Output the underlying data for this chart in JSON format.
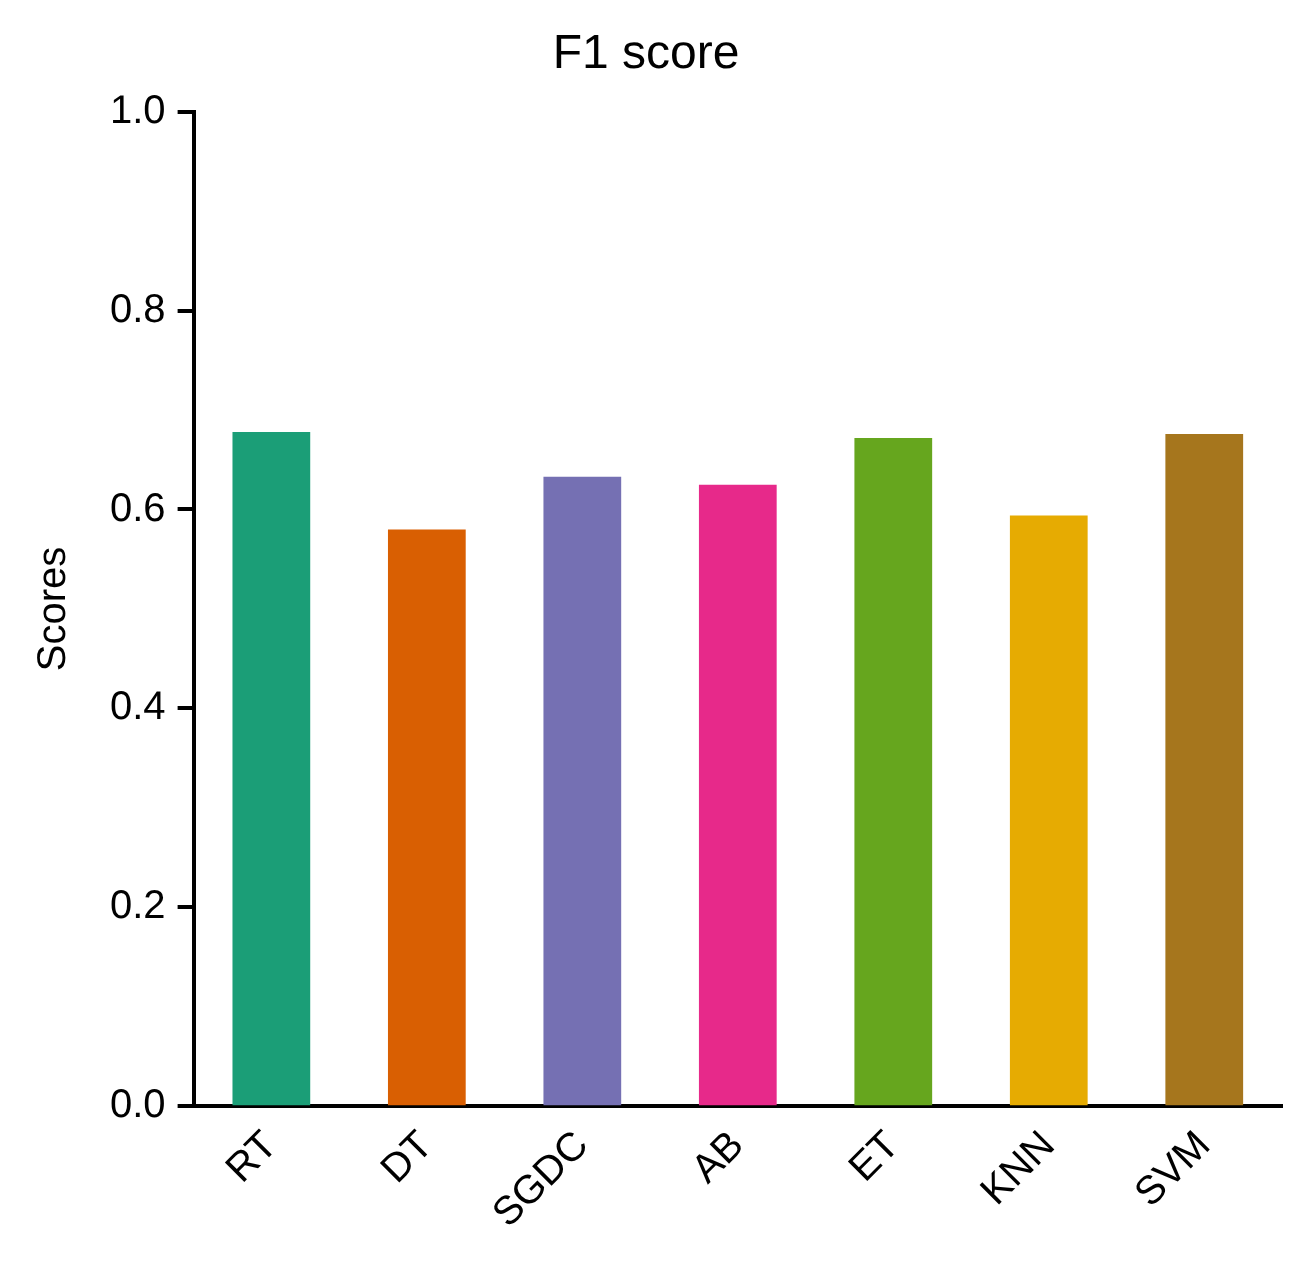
{
  "chart_data": {
    "type": "bar",
    "title": "F1 score",
    "ylabel": "Scores",
    "categories": [
      "RT",
      "DT",
      "SGDC",
      "AB",
      "ET",
      "KNN",
      "SVM"
    ],
    "values": [
      0.678,
      0.58,
      0.633,
      0.625,
      0.672,
      0.594,
      0.676
    ],
    "colors": [
      "#1b9e77",
      "#d95f02",
      "#7570b3",
      "#e7298a",
      "#66a61e",
      "#e6ab02",
      "#a6761d"
    ],
    "ylim": [
      0,
      1
    ],
    "yticks": [
      {
        "value": 0,
        "label": "0.0"
      },
      {
        "value": 0.2,
        "label": "0.2"
      },
      {
        "value": 0.4,
        "label": "0.4"
      },
      {
        "value": 0.6,
        "label": "0.6"
      },
      {
        "value": 0.8,
        "label": "0.8"
      },
      {
        "value": 1,
        "label": "1.0"
      }
    ],
    "grid": false,
    "legend": false
  }
}
